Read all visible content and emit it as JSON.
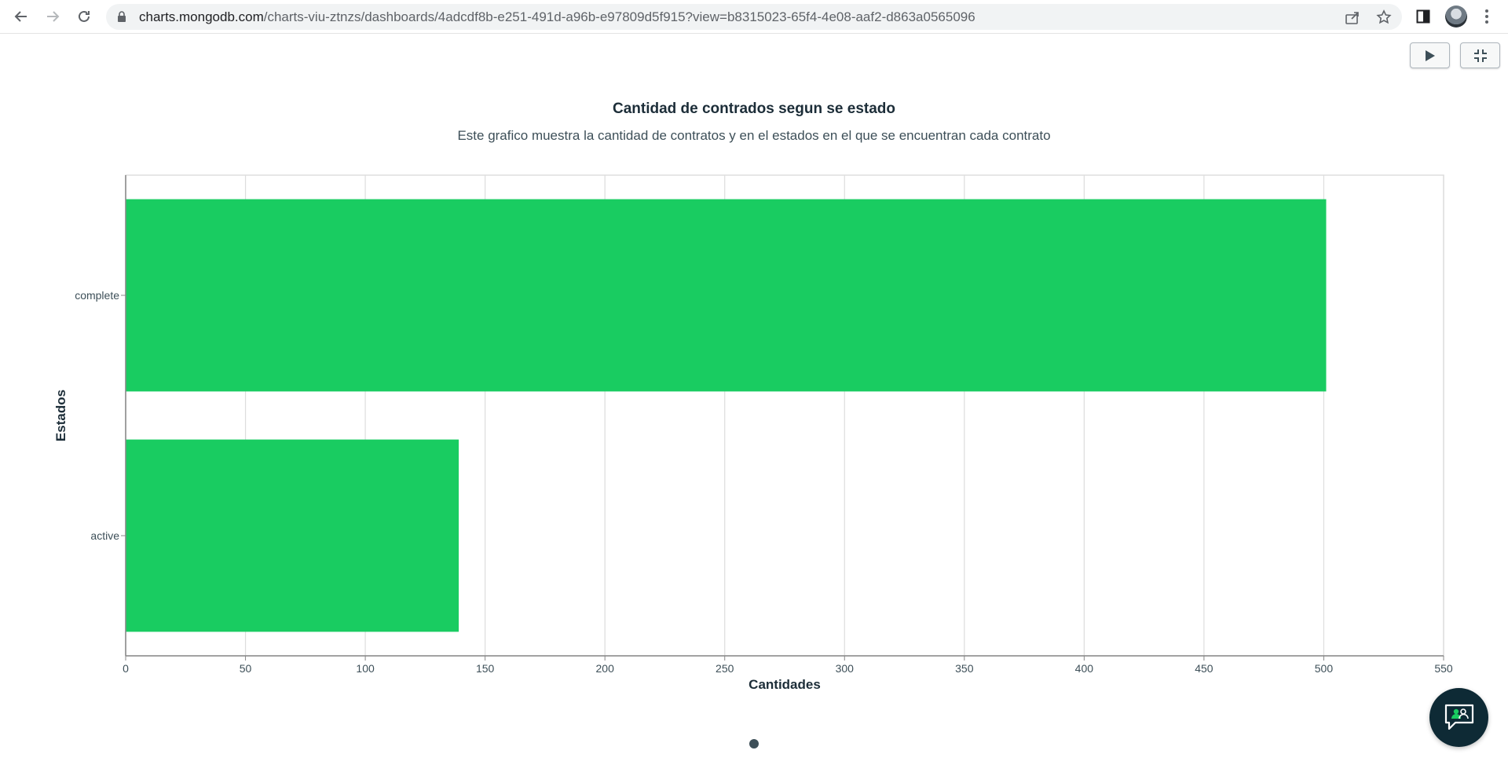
{
  "browser": {
    "url_host": "charts.mongodb.com",
    "url_path": "/charts-viu-ztnzs/dashboards/4adcdf8b-e251-491d-a96b-e97809d5f915?view=b8315023-65f4-4e08-aaf2-d863a0565096"
  },
  "icons": {
    "back": "arrow-left-icon",
    "forward": "arrow-right-icon",
    "reload": "reload-icon",
    "lock": "lock-icon",
    "share": "share-icon",
    "bookmark": "star-icon",
    "sidepanel": "side-panel-icon",
    "menu": "kebab-menu-icon",
    "play": "play-icon",
    "exit_fullscreen": "exit-fullscreen-icon",
    "chat": "chat-support-icon"
  },
  "colors": {
    "bar": "#19cc61",
    "grid": "#dddddd",
    "axis": "#888888"
  },
  "chart_data": {
    "type": "bar",
    "orientation": "horizontal",
    "title": "Cantidad de contrados segun se estado",
    "subtitle": "Este grafico muestra la cantidad de contratos y en el estados en el que se encuentran cada contrato",
    "categories": [
      "complete",
      "active"
    ],
    "values": [
      501,
      139
    ],
    "xlabel": "Cantidades",
    "ylabel": "Estados",
    "xlim": [
      0,
      550
    ],
    "xticks": [
      0,
      50,
      100,
      150,
      200,
      250,
      300,
      350,
      400,
      450,
      500,
      550
    ],
    "grid": true,
    "legend": "none"
  }
}
